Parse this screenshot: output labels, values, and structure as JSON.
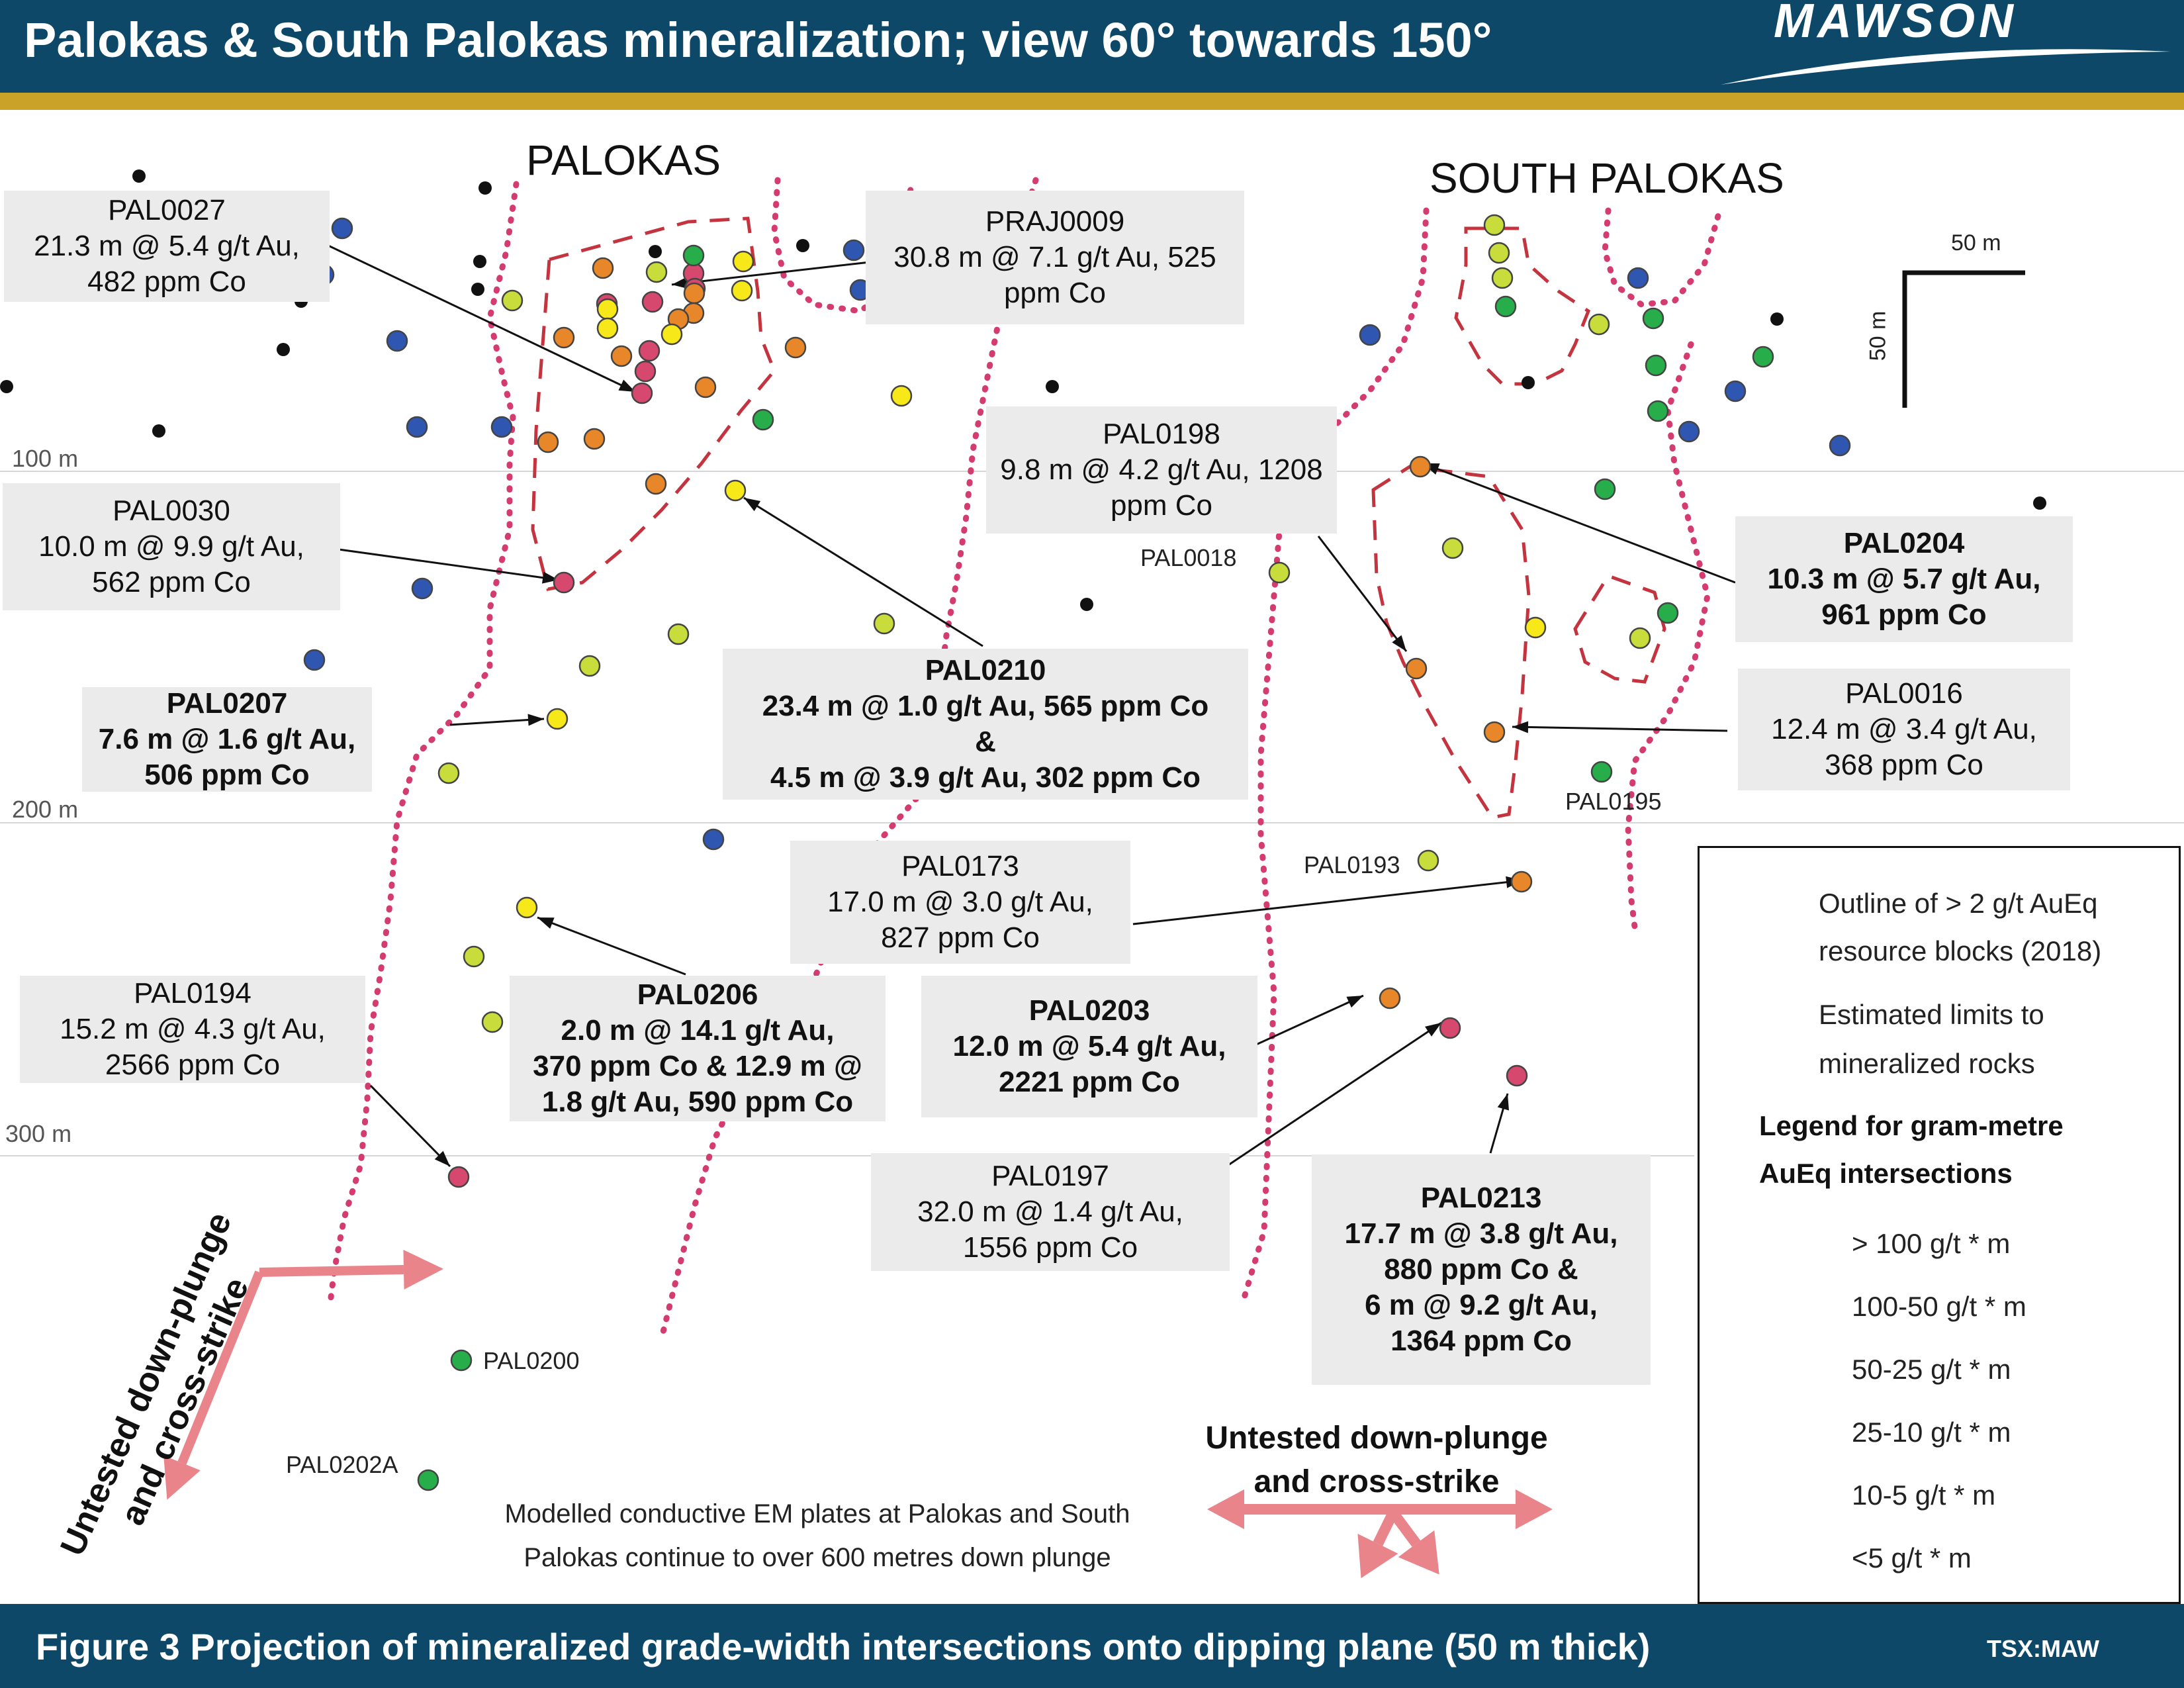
{
  "header": {
    "title": "Palokas & South Palokas mineralization; view 60° towards 150°",
    "logo_text": "MAWSON"
  },
  "footer": {
    "caption": "Figure 3 Projection of mineralized grade-width intersections onto dipping plane (50 m thick)",
    "ticker": "TSX:MAW"
  },
  "zones": {
    "palokas": "PALOKAS",
    "south_palokas": "SOUTH PALOKAS"
  },
  "scale_bar": {
    "horizontal": "50 m",
    "vertical": "50 m"
  },
  "depth_labels": [
    "100 m",
    "200 m",
    "300 m"
  ],
  "callouts": [
    {
      "id": "PAL0027",
      "bold": false,
      "lines": [
        "PAL0027",
        "21.3 m @ 5.4 g/t Au,",
        "482 ppm Co"
      ]
    },
    {
      "id": "PRAJ0009",
      "bold": false,
      "lines": [
        "PRAJ0009",
        "30.8 m @ 7.1 g/t Au, 525",
        "ppm Co"
      ]
    },
    {
      "id": "PAL0030",
      "bold": false,
      "lines": [
        "PAL0030",
        "10.0 m @ 9.9 g/t Au,",
        "562 ppm Co"
      ]
    },
    {
      "id": "PAL0198",
      "bold": false,
      "lines": [
        "PAL0198",
        "9.8 m @ 4.2 g/t Au, 1208",
        "ppm Co"
      ]
    },
    {
      "id": "PAL0204",
      "bold": true,
      "lines": [
        "PAL0204",
        "10.3 m @ 5.7 g/t Au,",
        "961 ppm Co"
      ]
    },
    {
      "id": "PAL0207",
      "bold": true,
      "lines": [
        "PAL0207",
        "7.6 m @ 1.6 g/t Au,",
        "506 ppm Co"
      ]
    },
    {
      "id": "PAL0210",
      "bold": true,
      "lines": [
        "PAL0210",
        "23.4 m @ 1.0 g/t Au, 565 ppm Co",
        "&",
        "4.5 m @ 3.9 g/t Au, 302 ppm Co"
      ]
    },
    {
      "id": "PAL0016",
      "bold": false,
      "lines": [
        "PAL0016",
        "12.4 m @ 3.4 g/t Au,",
        "368 ppm Co"
      ]
    },
    {
      "id": "PAL0173",
      "bold": false,
      "lines": [
        "PAL0173",
        "17.0 m @ 3.0 g/t Au,",
        "827 ppm Co"
      ]
    },
    {
      "id": "PAL0194",
      "bold": false,
      "lines": [
        "PAL0194",
        "15.2 m @ 4.3 g/t Au,",
        "2566 ppm Co"
      ]
    },
    {
      "id": "PAL0206",
      "bold": true,
      "lines": [
        "PAL0206",
        "2.0 m @ 14.1 g/t Au,",
        "370 ppm Co & 12.9 m @",
        "1.8 g/t Au, 590 ppm Co"
      ]
    },
    {
      "id": "PAL0203",
      "bold": true,
      "lines": [
        "PAL0203",
        "12.0 m @ 5.4 g/t Au,",
        "2221 ppm Co"
      ]
    },
    {
      "id": "PAL0197",
      "bold": false,
      "lines": [
        "PAL0197",
        "32.0 m @ 1.4 g/t Au,",
        "1556 ppm Co"
      ]
    },
    {
      "id": "PAL0213",
      "bold": true,
      "lines": [
        "PAL0213",
        "17.7 m @ 3.8 g/t Au,",
        "880 ppm Co &",
        "6 m @ 9.2 g/t Au,",
        "1364 ppm Co"
      ]
    }
  ],
  "hole_labels": [
    "PAL0018",
    "PAL0195",
    "PAL0193",
    "PAL0200",
    "PAL0202A"
  ],
  "untested_left": [
    "Untested down-plunge",
    "and cross-strike"
  ],
  "untested_right": [
    "Untested down-plunge",
    "and cross-strike"
  ],
  "em_note": [
    "Modelled conductive EM plates at Palokas and South",
    "Palokas continue to over 600 metres down plunge"
  ],
  "legend": {
    "outline": [
      "Outline of > 2 g/t AuEq",
      "resource blocks (2018)"
    ],
    "limits": [
      "Estimated limits to",
      "mineralized rocks"
    ],
    "heading": [
      "Legend for gram-metre",
      "AuEq intersections"
    ],
    "classes": [
      {
        "label": "> 100 g/t * m",
        "color": "#d6486e"
      },
      {
        "label": "100-50 g/t * m",
        "color": "#e8862a"
      },
      {
        "label": "50-25 g/t * m",
        "color": "#f7e81a"
      },
      {
        "label": "25-10 g/t * m",
        "color": "#c8dc3c"
      },
      {
        "label": "10-5 g/t * m",
        "color": "#27ae4a"
      },
      {
        "label": "<5 g/t * m",
        "color": "#2f56b0"
      }
    ],
    "outline_color": "#c4343f",
    "limit_color": "#d43c6e"
  }
}
